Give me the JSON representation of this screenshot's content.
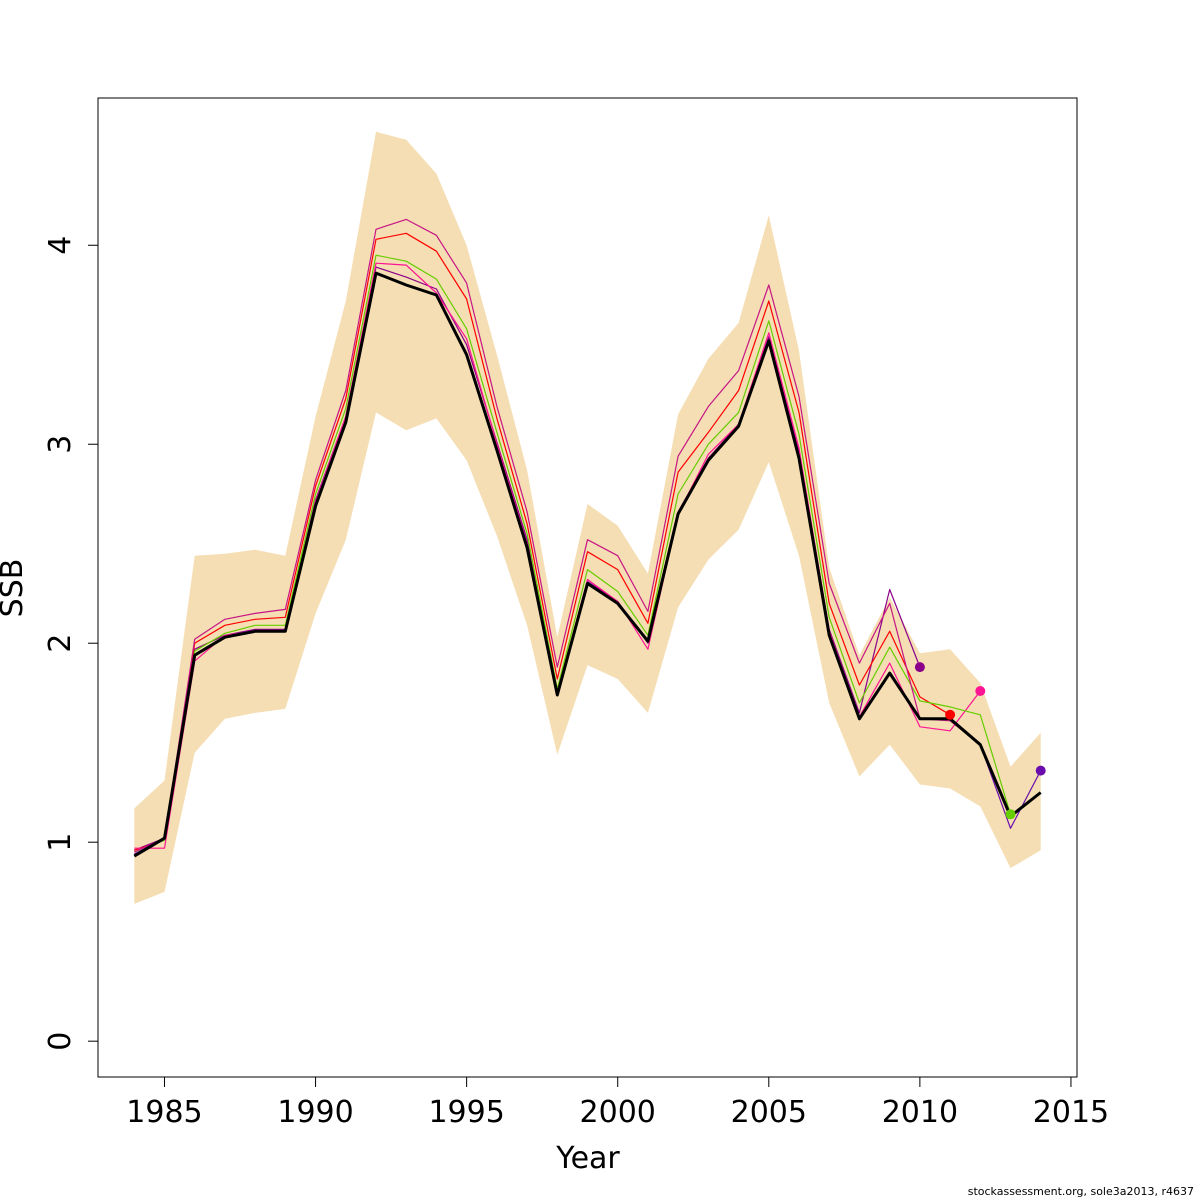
{
  "chart_data": {
    "type": "line",
    "xlabel": "Year",
    "ylabel": "SSB",
    "xlim": [
      1982.8,
      2015.2
    ],
    "ylim": [
      -0.18,
      4.74
    ],
    "x_ticks": [
      1985,
      1990,
      1995,
      2000,
      2005,
      2010,
      2015
    ],
    "y_ticks": [
      0,
      1,
      2,
      3,
      4
    ],
    "grid": false,
    "legend": "none",
    "years": [
      1984,
      1985,
      1986,
      1987,
      1988,
      1989,
      1990,
      1991,
      1992,
      1993,
      1994,
      1995,
      1996,
      1997,
      1998,
      1999,
      2000,
      2001,
      2002,
      2003,
      2004,
      2005,
      2006,
      2007,
      2008,
      2009,
      2010,
      2011,
      2012,
      2013,
      2014
    ],
    "band": {
      "color": "#F5DEB3",
      "lower": [
        0.69,
        0.75,
        1.45,
        1.62,
        1.65,
        1.67,
        2.15,
        2.52,
        3.16,
        3.07,
        3.13,
        2.92,
        2.54,
        2.09,
        1.44,
        1.89,
        1.82,
        1.65,
        2.18,
        2.42,
        2.57,
        2.91,
        2.44,
        1.7,
        1.33,
        1.49,
        1.29,
        1.27,
        1.18,
        0.87,
        0.96
      ],
      "upper": [
        1.17,
        1.31,
        2.44,
        2.45,
        2.47,
        2.44,
        3.14,
        3.72,
        4.57,
        4.53,
        4.36,
        4.0,
        3.45,
        2.87,
        2.03,
        2.7,
        2.59,
        2.35,
        3.15,
        3.43,
        3.61,
        4.15,
        3.47,
        2.38,
        1.94,
        2.23,
        1.95,
        1.97,
        1.8,
        1.38,
        1.55
      ]
    },
    "series": [
      {
        "color": "#000000",
        "width": 3,
        "x": [
          1984,
          1985,
          1986,
          1987,
          1988,
          1989,
          1990,
          1991,
          1992,
          1993,
          1994,
          1995,
          1996,
          1997,
          1998,
          1999,
          2000,
          2001,
          2002,
          2003,
          2004,
          2005,
          2006,
          2007,
          2008,
          2009,
          2010,
          2011,
          2012,
          2013,
          2014
        ],
        "y": [
          0.93,
          1.02,
          1.94,
          2.03,
          2.06,
          2.06,
          2.69,
          3.11,
          3.86,
          3.8,
          3.75,
          3.45,
          2.97,
          2.48,
          1.74,
          2.3,
          2.2,
          2.01,
          2.65,
          2.92,
          3.09,
          3.52,
          2.93,
          2.04,
          1.62,
          1.85,
          1.62,
          1.62,
          1.49,
          1.13,
          1.25
        ]
      },
      {
        "color": "#8B008B",
        "width": 1.2,
        "x": [
          1984,
          1985,
          1986,
          1987,
          1988,
          1989,
          1990,
          1991,
          1992,
          1993,
          1994,
          1995,
          1996,
          1997,
          1998,
          1999,
          2000,
          2001,
          2002,
          2003,
          2004,
          2005,
          2006,
          2007,
          2008,
          2009,
          2010
        ],
        "y": [
          0.96,
          1.02,
          1.97,
          2.04,
          2.07,
          2.07,
          2.72,
          3.14,
          3.89,
          3.84,
          3.78,
          3.5,
          3.01,
          2.52,
          1.75,
          2.31,
          2.21,
          2.0,
          2.66,
          2.93,
          3.1,
          3.54,
          2.96,
          2.07,
          1.65,
          2.27,
          1.88
        ],
        "point": {
          "x": 2010,
          "y": 1.88
        }
      },
      {
        "color": "#FF0000",
        "width": 1.2,
        "x": [
          1984,
          1985,
          1986,
          1987,
          1988,
          1989,
          1990,
          1991,
          1992,
          1993,
          1994,
          1995,
          1996,
          1997,
          1998,
          1999,
          2000,
          2001,
          2002,
          2003,
          2004,
          2005,
          2006,
          2007,
          2008,
          2009,
          2010,
          2011
        ],
        "y": [
          0.96,
          1.01,
          2.0,
          2.09,
          2.12,
          2.13,
          2.79,
          3.23,
          4.03,
          4.06,
          3.97,
          3.73,
          3.13,
          2.6,
          1.82,
          2.46,
          2.37,
          2.1,
          2.86,
          3.06,
          3.27,
          3.72,
          3.16,
          2.2,
          1.79,
          2.06,
          1.73,
          1.64
        ],
        "point": {
          "x": 2011,
          "y": 1.64
        }
      },
      {
        "color": "#FF1493",
        "width": 1.2,
        "x": [
          1984,
          1985,
          1986,
          1987,
          1988,
          1989,
          1990,
          1991,
          1992,
          1993,
          1994,
          1995,
          1996,
          1997,
          1998,
          1999,
          2000,
          2001,
          2002,
          2003,
          2004,
          2005,
          2006,
          2007,
          2008,
          2009,
          2010,
          2011,
          2012
        ],
        "y": [
          0.97,
          0.97,
          1.91,
          2.04,
          2.06,
          2.06,
          2.71,
          3.14,
          3.91,
          3.9,
          3.76,
          3.53,
          3.0,
          2.5,
          1.75,
          2.32,
          2.21,
          1.97,
          2.65,
          2.95,
          3.1,
          3.56,
          2.98,
          2.06,
          1.63,
          1.9,
          1.58,
          1.56,
          1.76
        ],
        "point": {
          "x": 2012,
          "y": 1.76
        }
      },
      {
        "color": "#66CD00",
        "width": 1.2,
        "x": [
          1984,
          1985,
          1986,
          1987,
          1988,
          1989,
          1990,
          1991,
          1992,
          1993,
          1994,
          1995,
          1996,
          1997,
          1998,
          1999,
          2000,
          2001,
          2002,
          2003,
          2004,
          2005,
          2006,
          2007,
          2008,
          2009,
          2010,
          2011,
          2012,
          2013
        ],
        "y": [
          0.95,
          1.01,
          1.96,
          2.05,
          2.09,
          2.09,
          2.75,
          3.18,
          3.95,
          3.92,
          3.83,
          3.58,
          3.06,
          2.55,
          1.77,
          2.37,
          2.26,
          2.04,
          2.75,
          3.0,
          3.16,
          3.62,
          3.05,
          2.13,
          1.7,
          1.98,
          1.71,
          1.68,
          1.64,
          1.14
        ],
        "point": {
          "x": 2013,
          "y": 1.14
        }
      },
      {
        "color": "#C71585",
        "width": 1.2,
        "x": [
          1984,
          1985,
          1986,
          1987,
          1988,
          1989,
          1990,
          1991,
          1992,
          1993,
          1994,
          1995,
          1996,
          1997,
          1998,
          1999,
          2000,
          2001,
          2002,
          2003,
          2004,
          2005,
          2006,
          2007,
          2008,
          2009,
          2010,
          2011,
          2012,
          2013
        ],
        "y": [
          0.95,
          1.02,
          2.02,
          2.12,
          2.15,
          2.17,
          2.82,
          3.27,
          4.08,
          4.13,
          4.05,
          3.81,
          3.19,
          2.66,
          1.88,
          2.52,
          2.44,
          2.16,
          2.94,
          3.19,
          3.37,
          3.8,
          3.24,
          2.3,
          1.9,
          2.2,
          1.62,
          1.61,
          1.49,
          1.13
        ]
      },
      {
        "color": "#6A0DAD",
        "width": 1.2,
        "x": [
          1984,
          1985,
          1986,
          1987,
          1988,
          1989,
          1990,
          1991,
          1992,
          1993,
          1994,
          1995,
          1996,
          1997,
          1998,
          1999,
          2000,
          2001,
          2002,
          2003,
          2004,
          2005,
          2006,
          2007,
          2008,
          2009,
          2010,
          2011,
          2012,
          2013,
          2014
        ],
        "y": [
          0.94,
          1.02,
          1.94,
          2.03,
          2.06,
          2.06,
          2.69,
          3.11,
          3.86,
          3.8,
          3.75,
          3.45,
          2.97,
          2.48,
          1.74,
          2.3,
          2.2,
          2.01,
          2.65,
          2.92,
          3.09,
          3.52,
          2.93,
          2.04,
          1.62,
          1.85,
          1.62,
          1.62,
          1.49,
          1.07,
          1.36
        ],
        "point": {
          "x": 2014,
          "y": 1.36
        }
      }
    ]
  },
  "footer": {
    "credit": "stockassessment.org, sole3a2013, r4637"
  }
}
